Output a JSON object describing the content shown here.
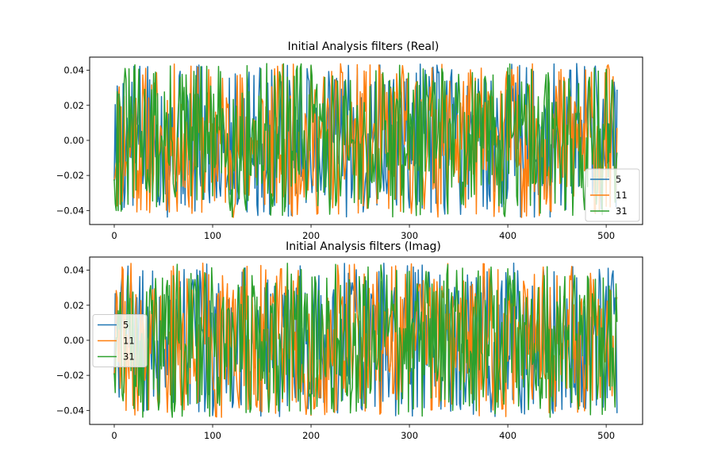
{
  "chart_data": [
    {
      "type": "line",
      "title": "Initial Analysis filters (Real)",
      "xlabel": "",
      "ylabel": "",
      "xlim": [
        -25,
        537
      ],
      "ylim": [
        -0.048,
        0.0475
      ],
      "x_ticks": [
        0,
        100,
        200,
        300,
        400,
        500
      ],
      "y_ticks": [
        -0.04,
        -0.02,
        0.0,
        0.02,
        0.04
      ],
      "grid": false,
      "legend_position": "lower-right",
      "n_points": 512,
      "series": [
        {
          "name": "5",
          "color": "#1f77b4",
          "amplitude": 0.044,
          "seed": 5
        },
        {
          "name": "11",
          "color": "#ff7f0e",
          "amplitude": 0.044,
          "seed": 11
        },
        {
          "name": "31",
          "color": "#2ca02c",
          "amplitude": 0.044,
          "seed": 31
        }
      ]
    },
    {
      "type": "line",
      "title": "Initial Analysis filters (Imag)",
      "xlabel": "",
      "ylabel": "",
      "xlim": [
        -25,
        537
      ],
      "ylim": [
        -0.048,
        0.0475
      ],
      "x_ticks": [
        0,
        100,
        200,
        300,
        400,
        500
      ],
      "y_ticks": [
        -0.04,
        -0.02,
        0.0,
        0.02,
        0.04
      ],
      "grid": false,
      "legend_position": "center-left",
      "n_points": 512,
      "series": [
        {
          "name": "5",
          "color": "#1f77b4",
          "amplitude": 0.044,
          "seed": 105
        },
        {
          "name": "11",
          "color": "#ff7f0e",
          "amplitude": 0.044,
          "seed": 111
        },
        {
          "name": "31",
          "color": "#2ca02c",
          "amplitude": 0.044,
          "seed": 131
        }
      ]
    }
  ]
}
